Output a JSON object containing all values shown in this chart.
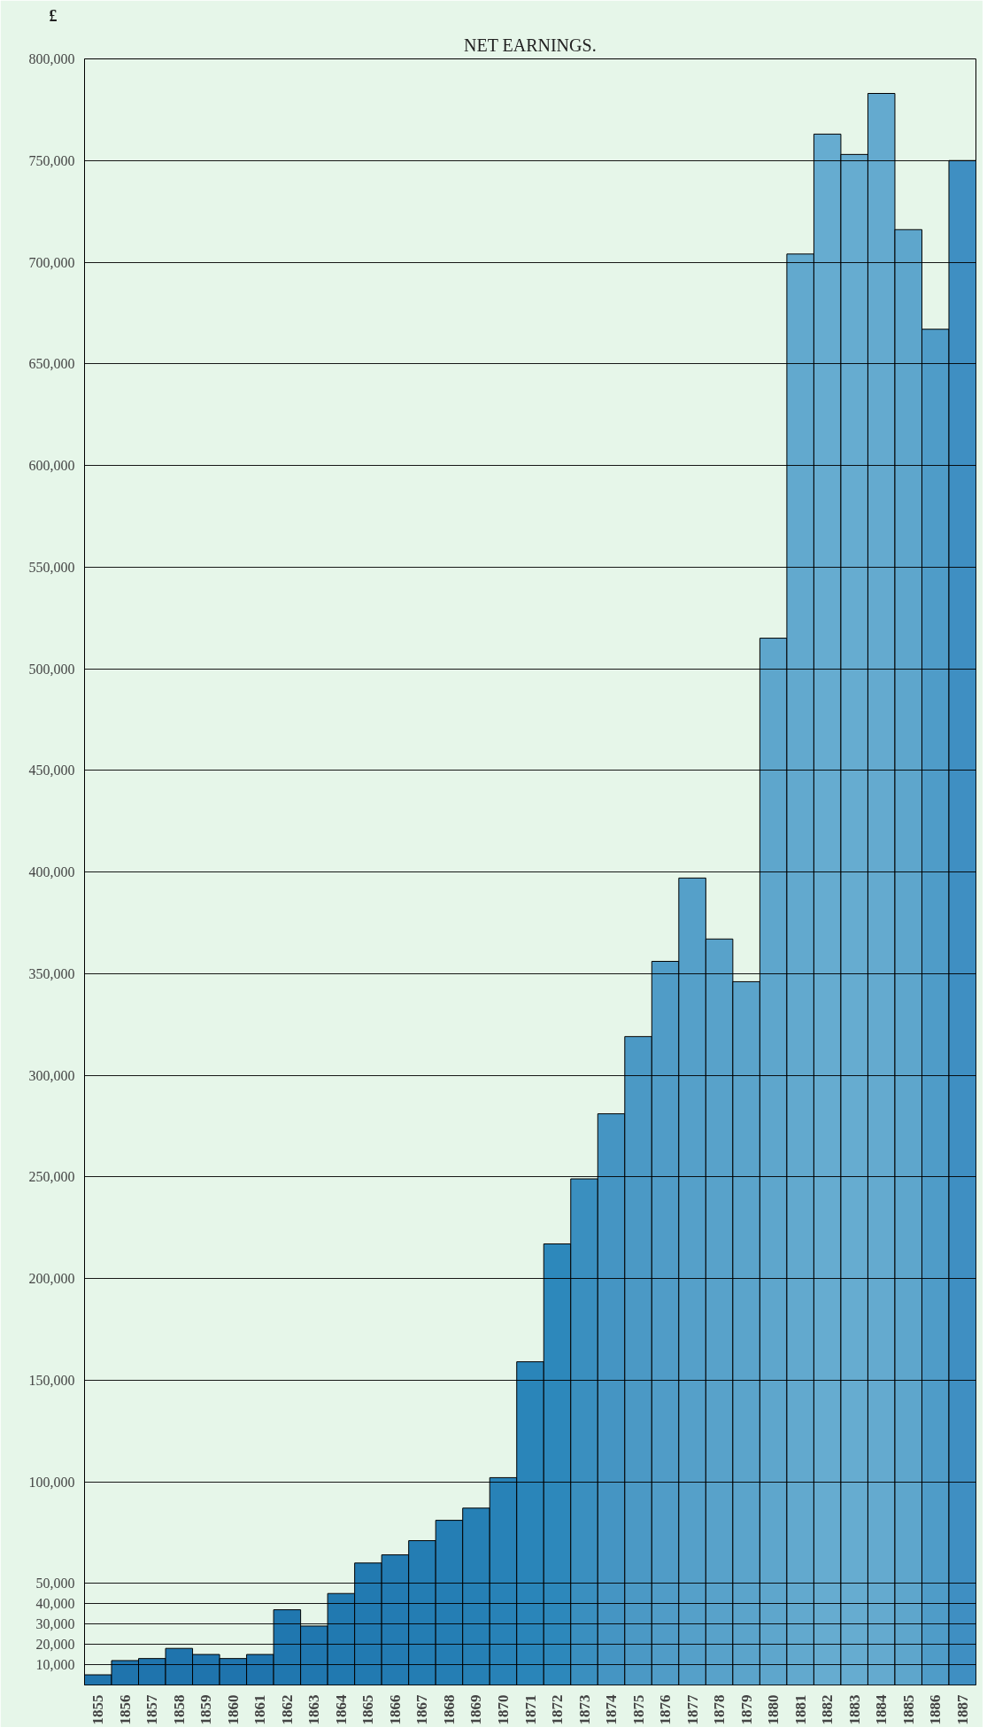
{
  "chart_data": {
    "type": "bar",
    "title": "NET EARNINGS.",
    "ylabel": "£",
    "categories": [
      "1855",
      "1856",
      "1857",
      "1858",
      "1859",
      "1860",
      "1861",
      "1862",
      "1863",
      "1864",
      "1865",
      "1866",
      "1867",
      "1868",
      "1869",
      "1870",
      "1871",
      "1872",
      "1873",
      "1874",
      "1875",
      "1876",
      "1877",
      "1878",
      "1879",
      "1880",
      "1881",
      "1882",
      "1883",
      "1884",
      "1885",
      "1886",
      "1887"
    ],
    "values": [
      5000,
      12000,
      13000,
      18000,
      15000,
      13000,
      15000,
      37000,
      29000,
      45000,
      60000,
      64000,
      71000,
      81000,
      87000,
      102000,
      159000,
      217000,
      249000,
      281000,
      319000,
      356000,
      397000,
      367000,
      346000,
      515000,
      704000,
      763000,
      753000,
      783000,
      716000,
      667000,
      750000
    ],
    "colors": [
      "#1f74ad",
      "#1f74ad",
      "#1f74ad",
      "#1f74ad",
      "#1f74ad",
      "#1f74ad",
      "#1f74ad",
      "#2077af",
      "#2077af",
      "#2179b0",
      "#227ab1",
      "#237bb2",
      "#247db3",
      "#257eb4",
      "#2680b5",
      "#2882b7",
      "#2a85b9",
      "#2d88bb",
      "#3a8fbf",
      "#4595c3",
      "#4b99c5",
      "#509cc7",
      "#55a0c9",
      "#58a2ca",
      "#5ba4cb",
      "#5ea6cc",
      "#62a9ce",
      "#66acd0",
      "#66acd0",
      "#64aacf",
      "#5ea6cc",
      "#4f9cc8",
      "#3f8fc2"
    ],
    "ylim": [
      0,
      800000
    ],
    "yticks": [
      {
        "value": 10000,
        "label": "10,000"
      },
      {
        "value": 20000,
        "label": "20,000"
      },
      {
        "value": 30000,
        "label": "30,000"
      },
      {
        "value": 40000,
        "label": "40,000"
      },
      {
        "value": 50000,
        "label": "50,000"
      },
      {
        "value": 100000,
        "label": "100,000"
      },
      {
        "value": 150000,
        "label": "150,000"
      },
      {
        "value": 200000,
        "label": "200,000"
      },
      {
        "value": 250000,
        "label": "250,000"
      },
      {
        "value": 300000,
        "label": "300,000"
      },
      {
        "value": 350000,
        "label": "350,000"
      },
      {
        "value": 400000,
        "label": "400,000"
      },
      {
        "value": 450000,
        "label": "450,000"
      },
      {
        "value": 500000,
        "label": "500,000"
      },
      {
        "value": 550000,
        "label": "550,000"
      },
      {
        "value": 600000,
        "label": "600,000"
      },
      {
        "value": 650000,
        "label": "650,000"
      },
      {
        "value": 700000,
        "label": "700,000"
      },
      {
        "value": 750000,
        "label": "750,000"
      },
      {
        "value": 800000,
        "label": "800,000"
      }
    ],
    "grid": "y"
  }
}
